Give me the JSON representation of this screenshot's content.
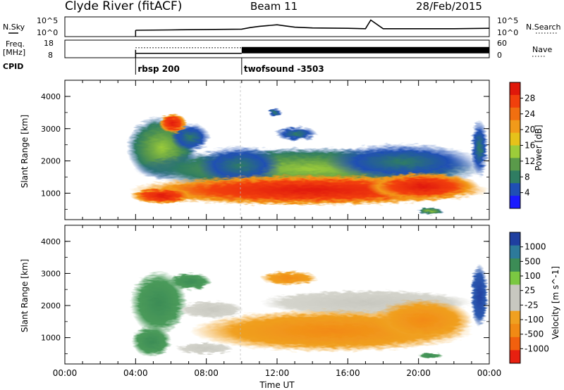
{
  "header": {
    "station": "Clyde River (fitACF)",
    "beam": "Beam 11",
    "date": "28/Feb/2015"
  },
  "left_labels": {
    "nsky": "N.Sky",
    "freq_line1": "Freq.",
    "freq_line2": "[MHz]",
    "cpid": "CPID"
  },
  "right_labels": {
    "nsearch": "N.Search",
    "nave": "Nave"
  },
  "cpid_segments": [
    {
      "name": "rbsp 200",
      "start_hour": 4.0
    },
    {
      "name": "twofsound -3503",
      "start_hour": 10.0
    }
  ],
  "chart_data": [
    {
      "type": "line",
      "panel": "noise",
      "left_axis_ticks": [
        "10^5",
        "10^0"
      ],
      "right_axis_ticks": [
        "10^5",
        "10^0"
      ],
      "series": [
        {
          "name": "N.Sky",
          "x": [
            4,
            6,
            8,
            10,
            10.5,
            11,
            11.5,
            12,
            12.5,
            13,
            14,
            16,
            17,
            17.3,
            18,
            20,
            22,
            24
          ],
          "values": [
            1.6,
            1.7,
            1.8,
            1.9,
            2.3,
            2.6,
            2.8,
            3.0,
            2.7,
            2.4,
            2.2,
            2.1,
            2.0,
            4.2,
            2.0,
            2.0,
            2.0,
            2.1
          ]
        }
      ]
    },
    {
      "type": "line",
      "panel": "freq_nave",
      "left_axis_ticks": [
        "18",
        "8"
      ],
      "right_axis_ticks": [
        "60",
        "0"
      ],
      "xlim": [
        0,
        24
      ],
      "series": [
        {
          "name": "Freq. [MHz]",
          "x": [
            4,
            10
          ],
          "values": [
            10.5,
            10.5
          ]
        },
        {
          "name": "Nave",
          "x": [
            4,
            10
          ],
          "values": [
            34,
            34
          ]
        },
        {
          "name": "Freq. [MHz] (twofsound)",
          "x": [
            10,
            24
          ],
          "values": [
            12.5,
            12.5
          ]
        }
      ]
    },
    {
      "type": "heatmap",
      "panel": "power",
      "ylabel": "Slant Range [km]",
      "yticks": [
        "1000",
        "2000",
        "3000",
        "4000"
      ],
      "ylim": [
        180,
        4500
      ],
      "xlim": [
        0,
        24
      ],
      "colorbar": {
        "label": "Power [dB]",
        "ticks": [
          "4",
          "8",
          "12",
          "16",
          "20",
          "24",
          "28"
        ],
        "colors": [
          "#1a1aff",
          "#1f4fb4",
          "#2f7d62",
          "#5a9a4a",
          "#9ccc3a",
          "#e6c21a",
          "#f29a1a",
          "#f26f10",
          "#f2400c",
          "#e0180a"
        ]
      },
      "echo_start_hour": 4.0,
      "echo_end_hour": 24.0
    },
    {
      "type": "heatmap",
      "panel": "velocity",
      "ylabel": "Slant Range [km]",
      "xlabel": "Time UT",
      "yticks": [
        "1000",
        "2000",
        "3000",
        "4000"
      ],
      "ylim": [
        180,
        4500
      ],
      "xlim": [
        0,
        24
      ],
      "xticks": [
        "00:00",
        "04:00",
        "08:00",
        "12:00",
        "16:00",
        "20:00",
        "00:00"
      ],
      "colorbar": {
        "label": "Velocity [m s^-1]",
        "ticks": [
          "1000",
          "500",
          "100",
          "25",
          "-25",
          "-100",
          "-500",
          "-1000"
        ],
        "colors": [
          "#1f3fa0",
          "#2d7a9a",
          "#3c8c56",
          "#7bc842",
          "#c8c8c0",
          "#c8c8c0",
          "#f0a020",
          "#f28a14",
          "#f2600e",
          "#e82010"
        ]
      }
    }
  ]
}
